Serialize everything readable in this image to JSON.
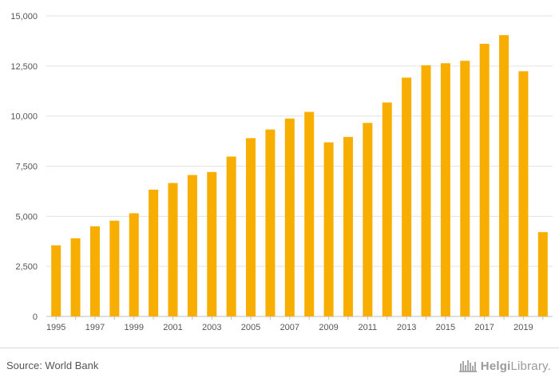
{
  "chart_data": {
    "type": "bar",
    "title": "",
    "xlabel": "",
    "ylabel": "",
    "categories": [
      "1995",
      "1996",
      "1997",
      "1998",
      "1999",
      "2000",
      "2001",
      "2002",
      "2003",
      "2004",
      "2005",
      "2006",
      "2007",
      "2008",
      "2009",
      "2010",
      "2011",
      "2012",
      "2013",
      "2014",
      "2015",
      "2016",
      "2017",
      "2018",
      "2019",
      "2020"
    ],
    "values": [
      3550,
      3900,
      4500,
      4780,
      5150,
      6330,
      6660,
      7060,
      7210,
      7980,
      8900,
      9330,
      9880,
      10210,
      8690,
      8960,
      9660,
      10680,
      11920,
      12540,
      12640,
      12760,
      13610,
      14040,
      12240,
      4210
    ],
    "ylim": [
      0,
      15000
    ],
    "yticks": [
      0,
      2500,
      5000,
      7500,
      10000,
      12500,
      15000
    ],
    "ytick_labels": [
      "0",
      "2,500",
      "5,000",
      "7,500",
      "10,000",
      "12,500",
      "15,000"
    ],
    "xtick_labels": [
      "1995",
      "1997",
      "1999",
      "2001",
      "2003",
      "2005",
      "2007",
      "2009",
      "2011",
      "2013",
      "2015",
      "2017",
      "2019"
    ],
    "bar_color": "#f7ae00",
    "grid": true,
    "legend": "none"
  },
  "footer": {
    "source": "Source: World Bank",
    "logo_text_bold": "Helgi",
    "logo_text": "Library.",
    "logo_icon": "library-icon"
  },
  "colors": {
    "bar": "#f7ae00",
    "grid": "#e3e3e3",
    "axis": "#bfbfbf"
  }
}
